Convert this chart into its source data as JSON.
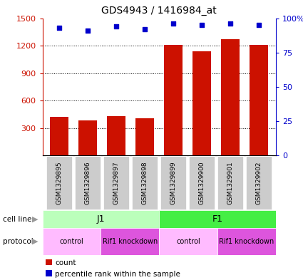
{
  "title": "GDS4943 / 1416984_at",
  "samples": [
    "GSM1329895",
    "GSM1329896",
    "GSM1329897",
    "GSM1329898",
    "GSM1329899",
    "GSM1329900",
    "GSM1329901",
    "GSM1329902"
  ],
  "counts": [
    420,
    385,
    430,
    405,
    1210,
    1140,
    1270,
    1210
  ],
  "percentiles": [
    93,
    91,
    94,
    92,
    96,
    95,
    96,
    95
  ],
  "bar_color": "#cc1100",
  "dot_color": "#0000cc",
  "ylim_left": [
    0,
    1500
  ],
  "ylim_right": [
    0,
    100
  ],
  "yticks_left": [
    300,
    600,
    900,
    1200,
    1500
  ],
  "yticks_right": [
    0,
    25,
    50,
    75,
    100
  ],
  "ytick_labels_left": [
    "300",
    "600",
    "900",
    "1200",
    "1500"
  ],
  "ytick_labels_right": [
    "0",
    "25",
    "50",
    "75",
    "100%"
  ],
  "cell_line_groups": [
    {
      "label": "J1",
      "start": 0,
      "end": 4,
      "color": "#bbffbb"
    },
    {
      "label": "F1",
      "start": 4,
      "end": 8,
      "color": "#44ee44"
    }
  ],
  "protocol_groups": [
    {
      "label": "control",
      "start": 0,
      "end": 2,
      "color": "#ffbbff"
    },
    {
      "label": "Rif1 knockdown",
      "start": 2,
      "end": 4,
      "color": "#dd55dd"
    },
    {
      "label": "control",
      "start": 4,
      "end": 6,
      "color": "#ffbbff"
    },
    {
      "label": "Rif1 knockdown",
      "start": 6,
      "end": 8,
      "color": "#dd55dd"
    }
  ],
  "cell_line_label": "cell line",
  "protocol_label": "protocol",
  "legend_count": "count",
  "legend_pct": "percentile rank within the sample",
  "background_color": "#ffffff",
  "sample_box_color": "#cccccc"
}
